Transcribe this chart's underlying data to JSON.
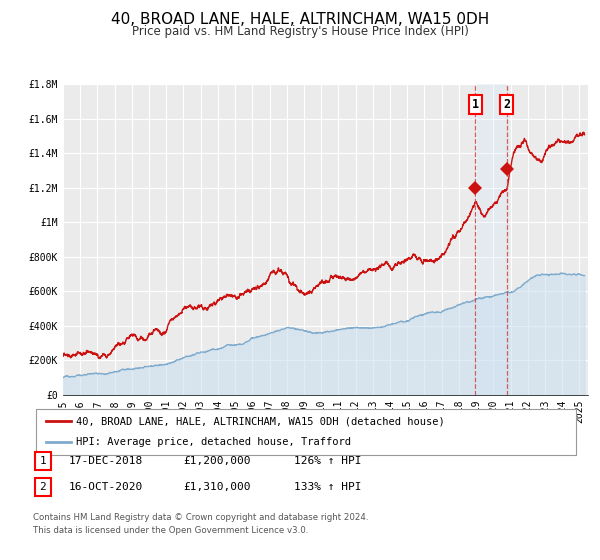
{
  "title": "40, BROAD LANE, HALE, ALTRINCHAM, WA15 0DH",
  "subtitle": "Price paid vs. HM Land Registry's House Price Index (HPI)",
  "ylim": [
    0,
    1800000
  ],
  "yticks": [
    0,
    200000,
    400000,
    600000,
    800000,
    1000000,
    1200000,
    1400000,
    1600000,
    1800000
  ],
  "ytick_labels": [
    "£0",
    "£200K",
    "£400K",
    "£600K",
    "£800K",
    "£1M",
    "£1.2M",
    "£1.4M",
    "£1.6M",
    "£1.8M"
  ],
  "xlim_start": 1995.0,
  "xlim_end": 2025.5,
  "background_color": "#ffffff",
  "plot_bg_color": "#ebebeb",
  "grid_color": "#ffffff",
  "hpi_line_color": "#7faacc",
  "hpi_fill_color": "#c8dff0",
  "price_color": "#cc1111",
  "sale1_date": 2018.958,
  "sale1_price": 1200000,
  "sale2_date": 2020.792,
  "sale2_price": 1310000,
  "legend1_text": "40, BROAD LANE, HALE, ALTRINCHAM, WA15 0DH (detached house)",
  "legend2_text": "HPI: Average price, detached house, Trafford",
  "table_row1": [
    "1",
    "17-DEC-2018",
    "£1,200,000",
    "126% ↑ HPI"
  ],
  "table_row2": [
    "2",
    "16-OCT-2020",
    "£1,310,000",
    "133% ↑ HPI"
  ],
  "footnote1": "Contains HM Land Registry data © Crown copyright and database right 2024.",
  "footnote2": "This data is licensed under the Open Government Licence v3.0.",
  "title_fontsize": 11,
  "subtitle_fontsize": 8.5,
  "tick_fontsize": 7,
  "legend_fontsize": 7.5,
  "table_fontsize": 8
}
